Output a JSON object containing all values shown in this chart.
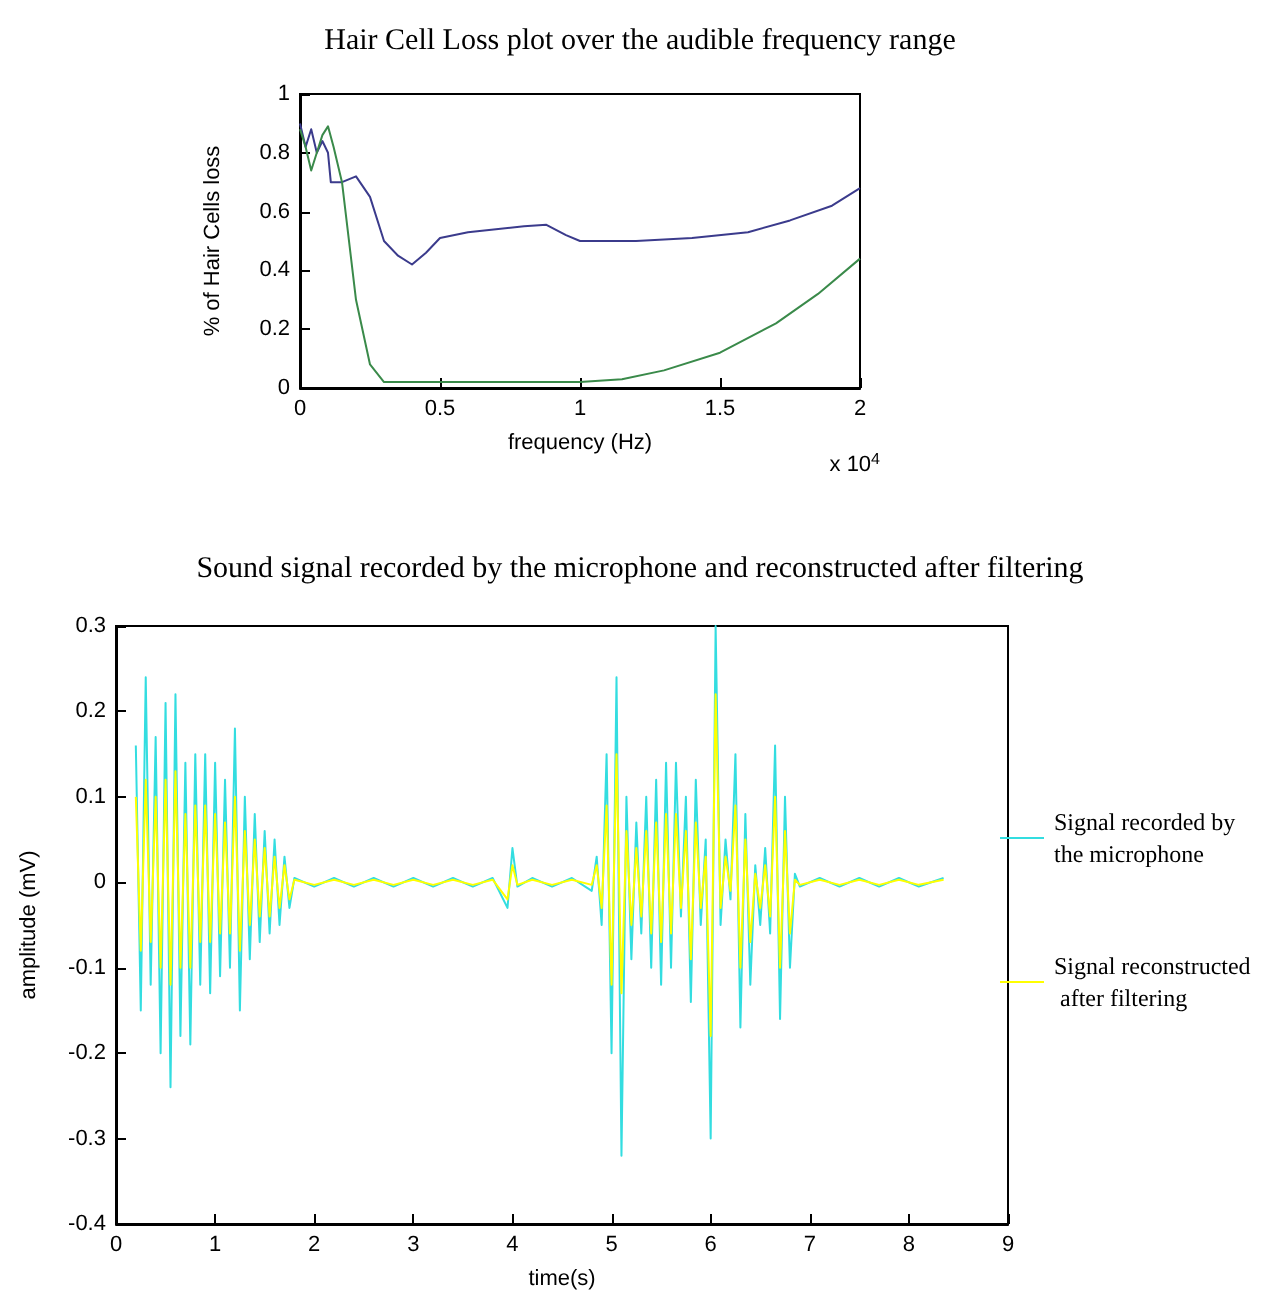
{
  "chart_data": [
    {
      "type": "line",
      "title": "Hair Cell Loss plot over the audible frequency range",
      "xlabel": "frequency (Hz)",
      "ylabel": "% of Hair Cells loss",
      "annotations": [
        "x 10$^{4}$"
      ],
      "xlim": [
        0,
        2
      ],
      "xticks": [
        0,
        0.5,
        1,
        1.5,
        2
      ],
      "ylim": [
        0,
        1
      ],
      "yticks": [
        0,
        0.2,
        0.4,
        0.6,
        0.8,
        1
      ],
      "grid": false,
      "legend": false,
      "series": [
        {
          "color": "#3b3b8c",
          "x": [
            0,
            0.02,
            0.04,
            0.06,
            0.08,
            0.1,
            0.11,
            0.15,
            0.2,
            0.25,
            0.3,
            0.35,
            0.4,
            0.45,
            0.5,
            0.6,
            0.7,
            0.8,
            0.88,
            0.95,
            1,
            1.2,
            1.4,
            1.6,
            1.75,
            1.9,
            2
          ],
          "values": [
            0.9,
            0.82,
            0.88,
            0.8,
            0.84,
            0.8,
            0.7,
            0.7,
            0.72,
            0.65,
            0.5,
            0.45,
            0.42,
            0.46,
            0.51,
            0.53,
            0.54,
            0.55,
            0.555,
            0.52,
            0.5,
            0.5,
            0.51,
            0.53,
            0.57,
            0.62,
            0.68
          ]
        },
        {
          "color": "#3a8a4a",
          "x": [
            0,
            0.02,
            0.04,
            0.06,
            0.08,
            0.1,
            0.12,
            0.15,
            0.2,
            0.25,
            0.3,
            0.5,
            1,
            1.15,
            1.3,
            1.5,
            1.7,
            1.85,
            2
          ],
          "values": [
            0.88,
            0.82,
            0.74,
            0.8,
            0.86,
            0.89,
            0.82,
            0.7,
            0.3,
            0.08,
            0.02,
            0.02,
            0.02,
            0.03,
            0.06,
            0.12,
            0.22,
            0.32,
            0.44
          ]
        }
      ]
    },
    {
      "type": "line",
      "title": "Sound signal recorded by the microphone and reconstructed after filtering",
      "xlabel": "time(s)",
      "ylabel": "amplitude (mV)",
      "xlim": [
        0,
        9
      ],
      "xticks": [
        0,
        1,
        2,
        3,
        4,
        5,
        6,
        7,
        8,
        9
      ],
      "ylim": [
        -0.4,
        0.3
      ],
      "yticks": [
        -0.4,
        -0.3,
        -0.2,
        -0.1,
        0,
        0.1,
        0.2,
        0.3
      ],
      "grid": false,
      "legend": "right",
      "series": [
        {
          "name": "Signal recorded by the microphone",
          "color": "#33dde0",
          "x": [
            0.2,
            0.25,
            0.3,
            0.35,
            0.4,
            0.45,
            0.5,
            0.55,
            0.6,
            0.65,
            0.7,
            0.75,
            0.8,
            0.85,
            0.9,
            0.95,
            1.0,
            1.05,
            1.1,
            1.15,
            1.2,
            1.25,
            1.3,
            1.35,
            1.4,
            1.45,
            1.5,
            1.55,
            1.6,
            1.65,
            1.7,
            1.75,
            1.8,
            2.0,
            2.2,
            2.4,
            2.6,
            2.8,
            3.0,
            3.2,
            3.4,
            3.6,
            3.8,
            3.95,
            4.0,
            4.05,
            4.2,
            4.4,
            4.6,
            4.8,
            4.85,
            4.9,
            4.95,
            5.0,
            5.05,
            5.1,
            5.15,
            5.2,
            5.25,
            5.3,
            5.35,
            5.4,
            5.45,
            5.5,
            5.55,
            5.6,
            5.65,
            5.7,
            5.75,
            5.8,
            5.85,
            5.9,
            5.95,
            6.0,
            6.05,
            6.1,
            6.15,
            6.2,
            6.25,
            6.3,
            6.35,
            6.4,
            6.45,
            6.5,
            6.55,
            6.6,
            6.65,
            6.7,
            6.75,
            6.8,
            6.85,
            6.9,
            7.1,
            7.3,
            7.5,
            7.7,
            7.9,
            8.1,
            8.35
          ],
          "values": [
            0.16,
            -0.15,
            0.24,
            -0.12,
            0.17,
            -0.2,
            0.21,
            -0.24,
            0.22,
            -0.18,
            0.14,
            -0.19,
            0.15,
            -0.12,
            0.15,
            -0.13,
            0.14,
            -0.11,
            0.12,
            -0.1,
            0.18,
            -0.15,
            0.1,
            -0.09,
            0.08,
            -0.07,
            0.06,
            -0.06,
            0.05,
            -0.05,
            0.03,
            -0.03,
            0.005,
            -0.005,
            0.005,
            -0.005,
            0.005,
            -0.005,
            0.005,
            -0.005,
            0.005,
            -0.005,
            0.005,
            -0.03,
            0.04,
            -0.005,
            0.005,
            -0.005,
            0.005,
            -0.01,
            0.03,
            -0.05,
            0.15,
            -0.2,
            0.24,
            -0.32,
            0.1,
            -0.09,
            0.07,
            -0.06,
            0.1,
            -0.1,
            0.12,
            -0.12,
            0.14,
            -0.1,
            0.14,
            -0.04,
            0.1,
            -0.14,
            0.12,
            -0.05,
            0.05,
            -0.3,
            0.3,
            -0.05,
            0.05,
            -0.02,
            0.15,
            -0.17,
            0.08,
            -0.12,
            0.02,
            -0.05,
            0.04,
            -0.06,
            0.16,
            -0.16,
            0.1,
            -0.1,
            0.01,
            -0.005,
            0.005,
            -0.005,
            0.005,
            -0.005,
            0.005,
            -0.005,
            0.005
          ]
        },
        {
          "name": "Signal reconstructed after filtering",
          "color": "#ffff00",
          "x": [
            0.2,
            0.25,
            0.3,
            0.35,
            0.4,
            0.45,
            0.5,
            0.55,
            0.6,
            0.65,
            0.7,
            0.75,
            0.8,
            0.85,
            0.9,
            0.95,
            1.0,
            1.05,
            1.1,
            1.15,
            1.2,
            1.25,
            1.3,
            1.35,
            1.4,
            1.45,
            1.5,
            1.55,
            1.6,
            1.65,
            1.7,
            1.75,
            1.8,
            2.0,
            2.2,
            2.4,
            2.6,
            2.8,
            3.0,
            3.2,
            3.4,
            3.6,
            3.8,
            3.95,
            4.0,
            4.05,
            4.2,
            4.4,
            4.6,
            4.8,
            4.85,
            4.9,
            4.95,
            5.0,
            5.05,
            5.1,
            5.15,
            5.2,
            5.25,
            5.3,
            5.35,
            5.4,
            5.45,
            5.5,
            5.55,
            5.6,
            5.65,
            5.7,
            5.75,
            5.8,
            5.85,
            5.9,
            5.95,
            6.0,
            6.05,
            6.1,
            6.15,
            6.2,
            6.25,
            6.3,
            6.35,
            6.4,
            6.45,
            6.5,
            6.55,
            6.6,
            6.65,
            6.7,
            6.75,
            6.8,
            6.85,
            6.9,
            7.1,
            7.3,
            7.5,
            7.7,
            7.9,
            8.1,
            8.35
          ],
          "values": [
            0.1,
            -0.08,
            0.12,
            -0.07,
            0.1,
            -0.1,
            0.12,
            -0.12,
            0.13,
            -0.1,
            0.08,
            -0.1,
            0.09,
            -0.07,
            0.09,
            -0.07,
            0.08,
            -0.06,
            0.07,
            -0.06,
            0.1,
            -0.08,
            0.06,
            -0.05,
            0.05,
            -0.04,
            0.04,
            -0.04,
            0.03,
            -0.03,
            0.02,
            -0.02,
            0.003,
            -0.003,
            0.003,
            -0.003,
            0.003,
            -0.003,
            0.003,
            -0.003,
            0.003,
            -0.003,
            0.003,
            -0.02,
            0.02,
            -0.003,
            0.003,
            -0.003,
            0.003,
            -0.003,
            0.02,
            -0.03,
            0.09,
            -0.12,
            0.15,
            -0.13,
            0.06,
            -0.05,
            0.04,
            -0.04,
            0.06,
            -0.06,
            0.07,
            -0.07,
            0.08,
            -0.06,
            0.08,
            -0.03,
            0.06,
            -0.09,
            0.07,
            -0.03,
            0.03,
            -0.18,
            0.22,
            -0.03,
            0.03,
            -0.01,
            0.09,
            -0.1,
            0.05,
            -0.07,
            0.01,
            -0.03,
            0.02,
            -0.04,
            0.1,
            -0.1,
            0.06,
            -0.06,
            0.003,
            -0.003,
            0.003,
            -0.003,
            0.003,
            -0.003,
            0.003,
            -0.003,
            0.003
          ]
        }
      ]
    }
  ]
}
